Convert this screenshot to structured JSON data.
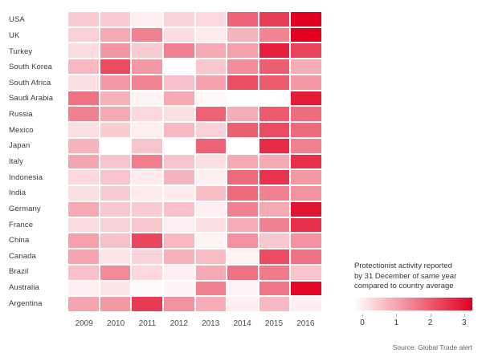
{
  "chart_data": {
    "type": "heatmap",
    "title": "",
    "xlabel": "",
    "ylabel": "",
    "x": [
      "2009",
      "2010",
      "2011",
      "2012",
      "2013",
      "2014",
      "2015",
      "2016"
    ],
    "rows": [
      "USA",
      "UK",
      "Turkey",
      "South Korea",
      "South Africa",
      "Saudi Arabia",
      "Russia",
      "Mexico",
      "Japan",
      "Italy",
      "Indonesia",
      "India",
      "Germany",
      "France",
      "China",
      "Canada",
      "Brazil",
      "Australia",
      "Argentina"
    ],
    "values": [
      [
        0.65,
        0.65,
        0.2,
        0.55,
        0.5,
        2.0,
        2.45,
        3.25
      ],
      [
        0.6,
        1.1,
        1.6,
        0.45,
        0.25,
        0.95,
        1.55,
        3.25
      ],
      [
        0.45,
        1.35,
        0.65,
        1.6,
        1.1,
        1.2,
        2.85,
        2.4
      ],
      [
        0.9,
        2.3,
        1.3,
        0.0,
        0.7,
        1.45,
        2.05,
        1.05
      ],
      [
        0.4,
        1.3,
        1.55,
        0.8,
        1.2,
        2.25,
        2.1,
        1.3
      ],
      [
        1.8,
        1.0,
        0.15,
        1.1,
        0.1,
        0.0,
        0.0,
        2.9
      ],
      [
        1.6,
        1.1,
        0.5,
        0.4,
        2.0,
        1.05,
        2.1,
        1.85
      ],
      [
        0.4,
        0.65,
        0.2,
        0.9,
        0.6,
        2.05,
        2.3,
        1.9
      ],
      [
        0.95,
        0.0,
        0.75,
        0.0,
        2.0,
        0.0,
        2.7,
        1.6
      ],
      [
        1.15,
        0.75,
        1.65,
        0.75,
        0.4,
        1.1,
        1.1,
        2.65
      ],
      [
        0.5,
        0.75,
        0.25,
        0.95,
        0.2,
        1.9,
        2.6,
        1.3
      ],
      [
        0.4,
        0.65,
        0.25,
        0.25,
        0.85,
        1.9,
        1.6,
        1.4
      ],
      [
        1.1,
        0.7,
        0.65,
        0.8,
        0.2,
        1.6,
        1.1,
        3.0
      ],
      [
        0.45,
        0.6,
        0.7,
        0.2,
        0.4,
        1.05,
        1.6,
        2.65
      ],
      [
        1.2,
        0.8,
        2.35,
        0.9,
        0.15,
        1.4,
        0.7,
        1.4
      ],
      [
        1.15,
        0.35,
        0.55,
        1.0,
        0.85,
        0.15,
        2.3,
        1.8
      ],
      [
        0.8,
        1.5,
        0.5,
        0.2,
        1.1,
        1.8,
        1.7,
        0.75
      ],
      [
        0.2,
        0.35,
        0.05,
        0.15,
        1.6,
        0.15,
        1.75,
        3.15
      ],
      [
        1.15,
        1.3,
        2.5,
        1.4,
        1.05,
        0.2,
        0.9,
        0.2
      ]
    ],
    "value_range": [
      0,
      3.25
    ],
    "colors": {
      "min": "#ffffff",
      "max": "#e1001f"
    },
    "grid": false,
    "legend_position": "bottom-right",
    "legend": {
      "title_lines": [
        "Protectionist activity reported",
        "by 31 December of same year",
        "compared to country average"
      ],
      "ticks": [
        "0",
        "1",
        "2",
        "3"
      ]
    },
    "source": "Source: Global Trade alert"
  }
}
